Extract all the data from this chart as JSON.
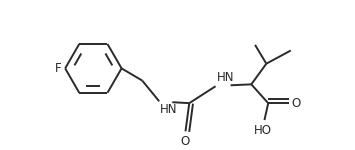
{
  "background_color": "#ffffff",
  "line_color": "#2a2a2a",
  "text_color": "#2a2a2a",
  "line_width": 1.4,
  "font_size": 8.5,
  "figsize": [
    3.55,
    1.5
  ],
  "dpi": 100,
  "xlim": [
    0,
    355
  ],
  "ylim": [
    0,
    150
  ]
}
